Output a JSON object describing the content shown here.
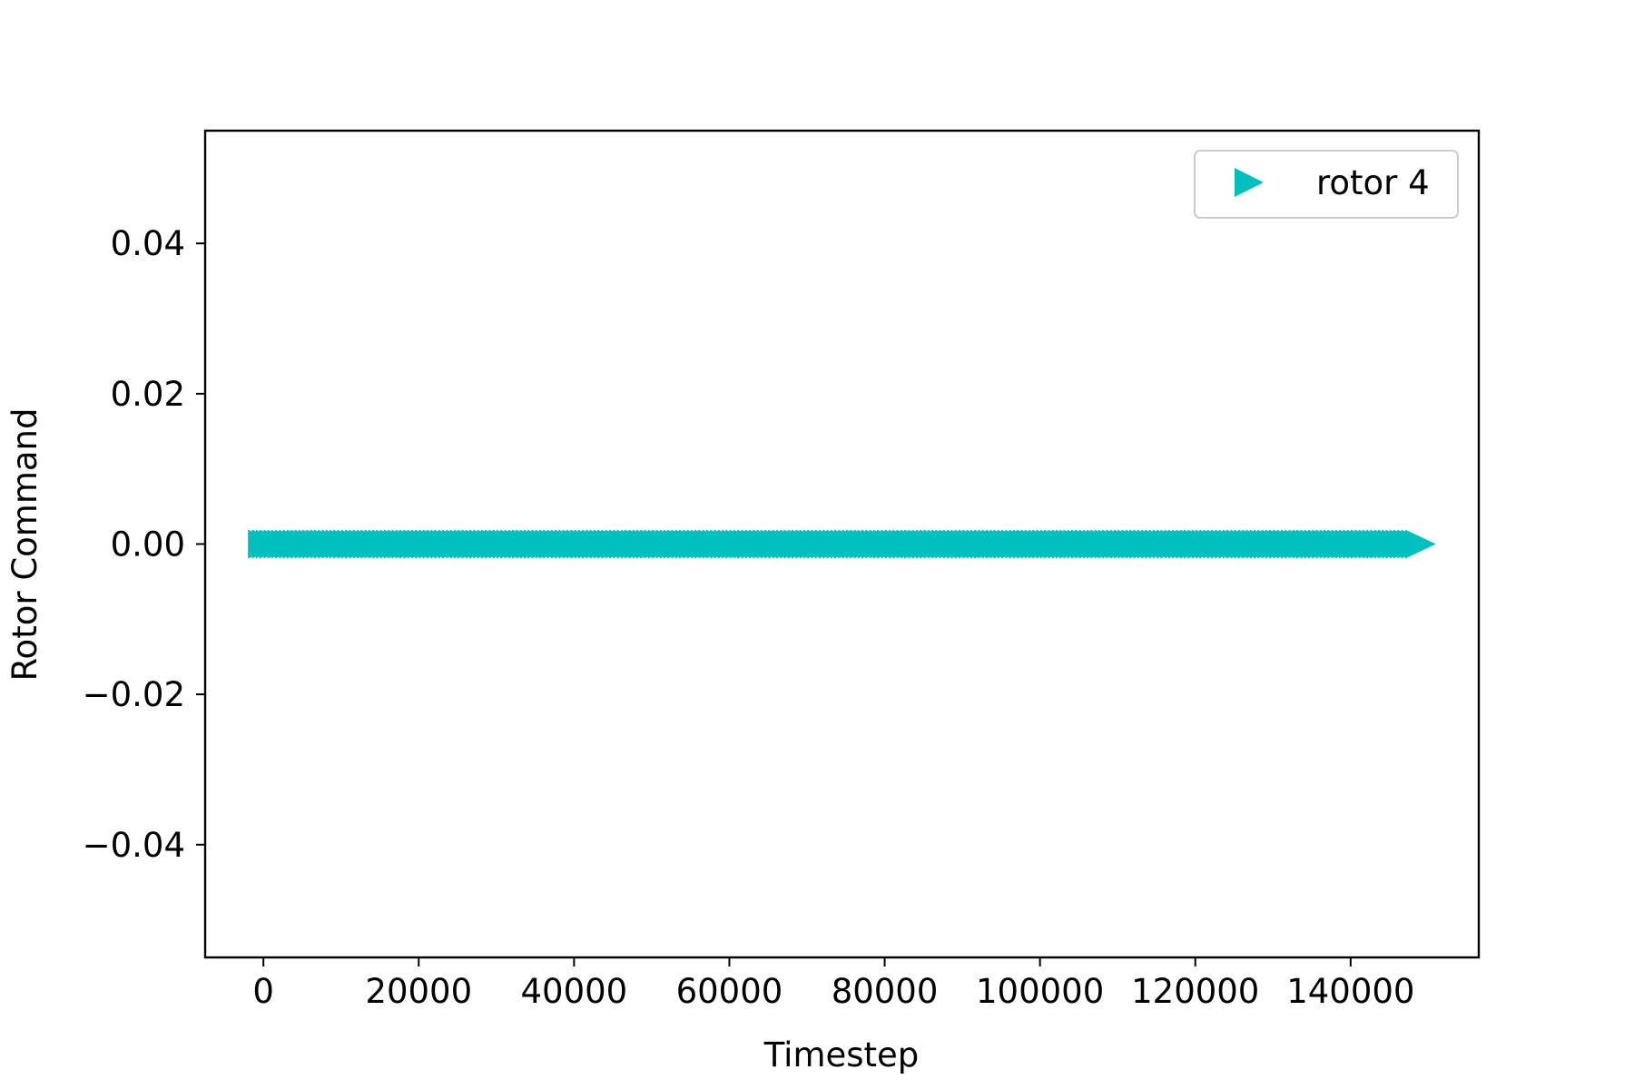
{
  "chart_data": {
    "type": "scatter",
    "title": "",
    "xlabel": "Timestep",
    "ylabel": "Rotor Command",
    "xlim": [
      -7500,
      156500
    ],
    "ylim": [
      -0.055,
      0.055
    ],
    "xticks": [
      0,
      20000,
      40000,
      60000,
      80000,
      100000,
      120000,
      140000
    ],
    "xtick_labels": [
      "0",
      "20000",
      "40000",
      "60000",
      "80000",
      "100000",
      "120000",
      "140000"
    ],
    "yticks": [
      -0.04,
      -0.02,
      0.0,
      0.02,
      0.04
    ],
    "ytick_labels": [
      "−0.04",
      "−0.02",
      "0.00",
      "0.02",
      "0.04"
    ],
    "grid": false,
    "legend": {
      "placement": "top-right"
    },
    "series": [
      {
        "name": "rotor 4",
        "marker": "triangle-right",
        "color": "#00bfbf",
        "x_start": 0,
        "x_end": 149000,
        "x_step": 500,
        "y_constant": 0.0
      }
    ]
  }
}
